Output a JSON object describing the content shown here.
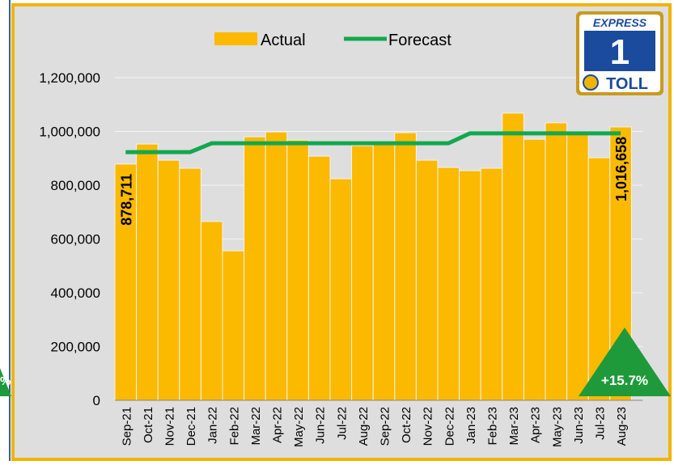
{
  "chart_data": {
    "type": "bar",
    "categories": [
      "Sep-21",
      "Oct-21",
      "Nov-21",
      "Dec-21",
      "Jan-22",
      "Feb-22",
      "Mar-22",
      "Apr-22",
      "May-22",
      "Jun-22",
      "Jul-22",
      "Aug-22",
      "Sep-22",
      "Oct-22",
      "Nov-22",
      "Dec-22",
      "Jan-23",
      "Feb-23",
      "Mar-23",
      "Apr-23",
      "May-23",
      "Jun-23",
      "Jul-23",
      "Aug-23"
    ],
    "series": [
      {
        "name": "Actual",
        "type": "bar",
        "color": "#fbb900",
        "values": [
          878711,
          953000,
          893000,
          863000,
          665000,
          556000,
          980000,
          998000,
          968000,
          908000,
          824000,
          947000,
          955000,
          995000,
          893000,
          866000,
          854000,
          863000,
          1068000,
          971000,
          1032000,
          993000,
          902000,
          1016658
        ],
        "value_labels": [
          "878,711",
          null,
          null,
          null,
          null,
          null,
          null,
          null,
          null,
          null,
          null,
          null,
          null,
          null,
          null,
          null,
          null,
          null,
          null,
          null,
          null,
          null,
          null,
          "1,016,658"
        ]
      },
      {
        "name": "Forecast",
        "type": "line",
        "color": "#12a84e",
        "values": [
          923000,
          923000,
          923000,
          923000,
          956000,
          956000,
          956000,
          956000,
          956000,
          956000,
          956000,
          956000,
          956000,
          956000,
          956000,
          956000,
          993000,
          993000,
          993000,
          993000,
          993000,
          993000,
          993000,
          993000
        ]
      }
    ],
    "ylim": [
      0,
      1200000
    ],
    "yticks": [
      0,
      {
        "value": 200000,
        "label": "200,000"
      },
      {
        "value": 400000,
        "label": "400,000"
      },
      {
        "value": 600000,
        "label": "600,000"
      },
      {
        "value": 800000,
        "label": "800,000"
      },
      {
        "value": 1000000,
        "label": "1,000,000"
      },
      {
        "value": 1200000,
        "label": "1,200,000"
      }
    ],
    "grid": true,
    "legend": "top",
    "change_label": "+15.7%",
    "left_fragment": "%",
    "logo": {
      "top": "EXPRESS",
      "number": "1",
      "bottom": "TOLL"
    }
  }
}
